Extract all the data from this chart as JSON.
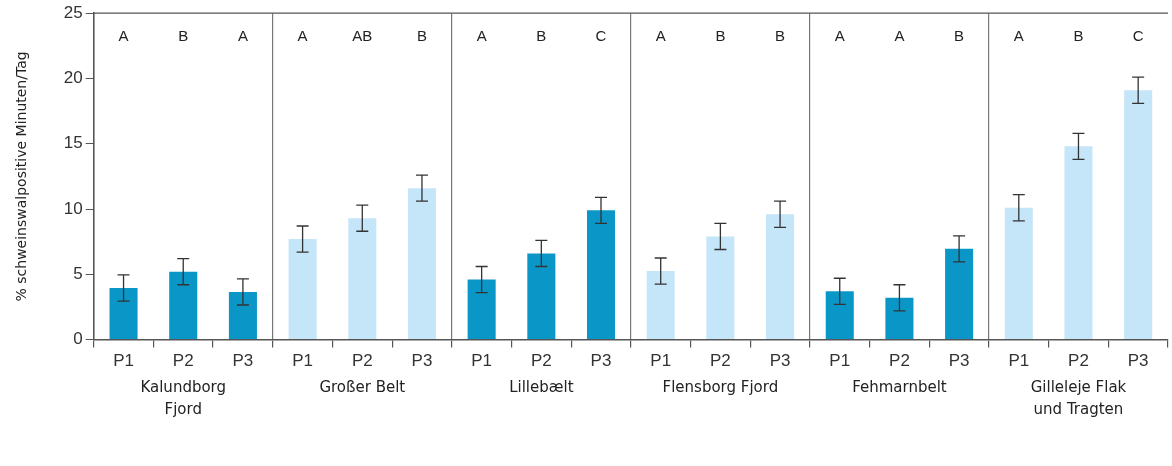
{
  "chart_data": {
    "type": "bar",
    "ylabel": "% schweinswalpositive Minuten/Tag",
    "categories": [
      "P1",
      "P2",
      "P3",
      "P1",
      "P2",
      "P3",
      "P1",
      "P2",
      "P3",
      "P1",
      "P2",
      "P3",
      "P1",
      "P2",
      "P3",
      "P1",
      "P2",
      "P3"
    ],
    "values": [
      3.95,
      5.2,
      3.65,
      7.7,
      9.3,
      11.6,
      4.6,
      6.6,
      9.9,
      5.25,
      7.9,
      9.6,
      3.7,
      3.2,
      6.95,
      10.1,
      14.8,
      19.1
    ],
    "errors": [
      1,
      1,
      1,
      1,
      1,
      1,
      1,
      1,
      1,
      1,
      1,
      1,
      1,
      1,
      1,
      1,
      1,
      1
    ],
    "colors": [
      "#0a97c8",
      "#0a97c8",
      "#0a97c8",
      "#c5e5f8",
      "#c5e5f8",
      "#c5e5f8",
      "#0a97c8",
      "#0a97c8",
      "#0a97c8",
      "#c5e5f8",
      "#c5e5f8",
      "#c5e5f8",
      "#0a97c8",
      "#0a97c8",
      "#0a97c8",
      "#c5e5f8",
      "#c5e5f8",
      "#c5e5f8"
    ],
    "ylim": [
      0,
      25
    ],
    "yticks": [
      0,
      5,
      10,
      15,
      20,
      25
    ],
    "grid": "x",
    "annotations": [
      "A",
      "B",
      "A",
      "A",
      "AB",
      "B",
      "A",
      "B",
      "C",
      "A",
      "B",
      "B",
      "A",
      "A",
      "B",
      "A",
      "B",
      "C",
      "Kalundborg Fjord",
      "Großer Belt",
      "Lillebælt",
      "Flensborg Fjord",
      "Fehmarnbelt",
      "Gilleleje Flak und Tragten"
    ]
  }
}
